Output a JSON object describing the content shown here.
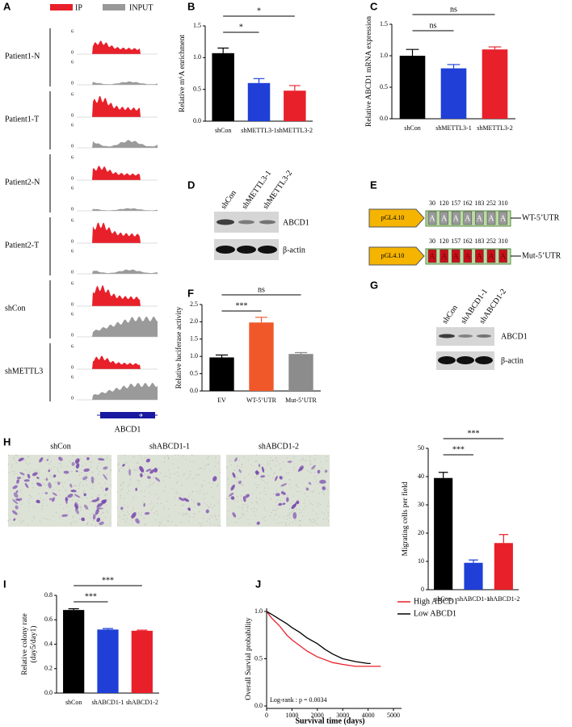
{
  "panel_letters": [
    "A",
    "B",
    "C",
    "D",
    "E",
    "F",
    "G",
    "H",
    "I",
    "J"
  ],
  "panel_a": {
    "legend": [
      "IP",
      "INPUT"
    ],
    "samples": [
      "Patient1-N",
      "Patient1-T",
      "Patient2-N",
      "Patient2-T",
      "shCon",
      "shMETTL3"
    ],
    "track_max": "6",
    "track_min": "0",
    "gene": "ABCD1"
  },
  "panel_d": {
    "lanes": [
      "shCon",
      "shMETTL3-1",
      "shMETTL3-2"
    ],
    "proteins": [
      "ABCD1",
      "β-actin"
    ]
  },
  "panel_e": {
    "vector": "pGL4.10",
    "positions": [
      "30",
      "120",
      "157",
      "162",
      "183",
      "252",
      "310"
    ],
    "site": "A",
    "constructs": [
      "WT-5’UTR",
      "Mut-5’UTR"
    ]
  },
  "panel_g": {
    "lanes": [
      "shCon",
      "shABCD1-1",
      "shABCD1-2"
    ],
    "proteins": [
      "ABCD1",
      "β-actin"
    ]
  },
  "panel_h": {
    "images": [
      "shCon",
      "shABCD1-1",
      "shABCD1-2"
    ]
  },
  "chart_data": [
    {
      "type": "bar",
      "y_label": "Relative m⁶A enrichment",
      "categories": [
        "shCon",
        "shMETTL3-1",
        "shMETTL3-2"
      ],
      "values": [
        1.07,
        0.6,
        0.48
      ],
      "errors": [
        0.08,
        0.07,
        0.08
      ],
      "colors": [
        "#000000",
        "#1f3fd6",
        "#e8202a"
      ],
      "ylim": [
        0,
        1.5
      ],
      "yticks": [
        {
          "value": 0,
          "label": "0.0"
        },
        0.5,
        {
          "value": 1,
          "label": "1.0"
        },
        1.5
      ],
      "annotations": [
        "*",
        "*"
      ]
    },
    {
      "type": "bar",
      "y_label": "Relative ABCD1 mRNA expression",
      "categories": [
        "shCon",
        "shMETTL3-1",
        "shMETTL3-2"
      ],
      "values": [
        1.0,
        0.8,
        1.1
      ],
      "errors": [
        0.1,
        0.06,
        0.04
      ],
      "colors": [
        "#000000",
        "#1f3fd6",
        "#e8202a"
      ],
      "ylim": [
        0,
        1.5
      ],
      "yticks": [
        {
          "value": 0,
          "label": "0.0"
        },
        0.5,
        {
          "value": 1,
          "label": "1.0"
        },
        1.5
      ],
      "annotations": [
        "ns",
        "ns"
      ]
    },
    {
      "type": "bar",
      "y_label": "Relative luciferase activity",
      "categories": [
        "EV",
        "WT-5’UTR",
        "Mut-5’UTR"
      ],
      "values": [
        0.97,
        1.98,
        1.07
      ],
      "errors": [
        0.07,
        0.15,
        0.04
      ],
      "colors": [
        "#000000",
        "#f0582a",
        "#8c8c8c"
      ],
      "ylim": [
        0,
        2.5
      ],
      "yticks": [
        {
          "value": 0,
          "label": "0.0"
        },
        0.5,
        {
          "value": 1,
          "label": "1.0"
        },
        1.5,
        {
          "value": 2,
          "label": "2.0"
        },
        2.5
      ],
      "annotations": [
        "***",
        "ns"
      ]
    },
    {
      "type": "bar",
      "y_label": "Migrating cells per field",
      "categories": [
        "shCon",
        "shABCD1-1",
        "shABCD1-2"
      ],
      "values": [
        39.5,
        9.5,
        16.5
      ],
      "errors": [
        2,
        1,
        3
      ],
      "colors": [
        "#000000",
        "#1f3fd6",
        "#e8202a"
      ],
      "ylim": [
        0,
        50
      ],
      "yticks": [
        0,
        10,
        20,
        30,
        40,
        50
      ],
      "annotations": [
        "***",
        "***"
      ]
    },
    {
      "type": "bar",
      "y_label": [
        "Relative colony rate",
        "(day5/day1)"
      ],
      "categories": [
        "shCon",
        "shABCD1-1",
        "shABCD1-2"
      ],
      "values": [
        0.68,
        0.52,
        0.51
      ],
      "errors": [
        0.01,
        0.008,
        0.005
      ],
      "colors": [
        "#000000",
        "#1f3fd6",
        "#e8202a"
      ],
      "ylim": [
        0,
        0.8
      ],
      "yticks": [
        {
          "value": 0,
          "label": "0.0"
        },
        0.2,
        0.4,
        0.6,
        0.8
      ],
      "annotations": [
        "***",
        "***"
      ]
    },
    {
      "type": "line",
      "x_label": "Survival time (days)",
      "y_label": "Overall Survial probability",
      "annotation": "Log-rank : p = 0.0034",
      "legend": "upper right",
      "xlim": [
        0,
        5000
      ],
      "xticks": [
        0,
        1000,
        2000,
        3000,
        4000,
        5000
      ],
      "ylim": [
        0,
        1
      ],
      "yticks": [
        {
          "value": 0,
          "label": "0.0"
        },
        0.5,
        {
          "value": 1,
          "label": "1.0"
        }
      ],
      "series": [
        {
          "name": "High ABCD1",
          "color": "#e8202a",
          "x": [
            0,
            200,
            500,
            800,
            1000,
            1300,
            1600,
            2000,
            2300,
            2600,
            3000,
            3500,
            4000,
            4500
          ],
          "values": [
            1.0,
            0.93,
            0.85,
            0.75,
            0.7,
            0.64,
            0.58,
            0.52,
            0.49,
            0.46,
            0.44,
            0.42,
            0.42,
            0.42
          ]
        },
        {
          "name": "Low ABCD1",
          "color": "#000000",
          "x": [
            0,
            200,
            500,
            800,
            1000,
            1300,
            1600,
            2000,
            2300,
            2600,
            3000,
            3500,
            4000,
            4100
          ],
          "values": [
            1.0,
            0.97,
            0.92,
            0.87,
            0.83,
            0.78,
            0.72,
            0.66,
            0.6,
            0.55,
            0.5,
            0.47,
            0.45,
            0.45
          ]
        }
      ]
    }
  ]
}
